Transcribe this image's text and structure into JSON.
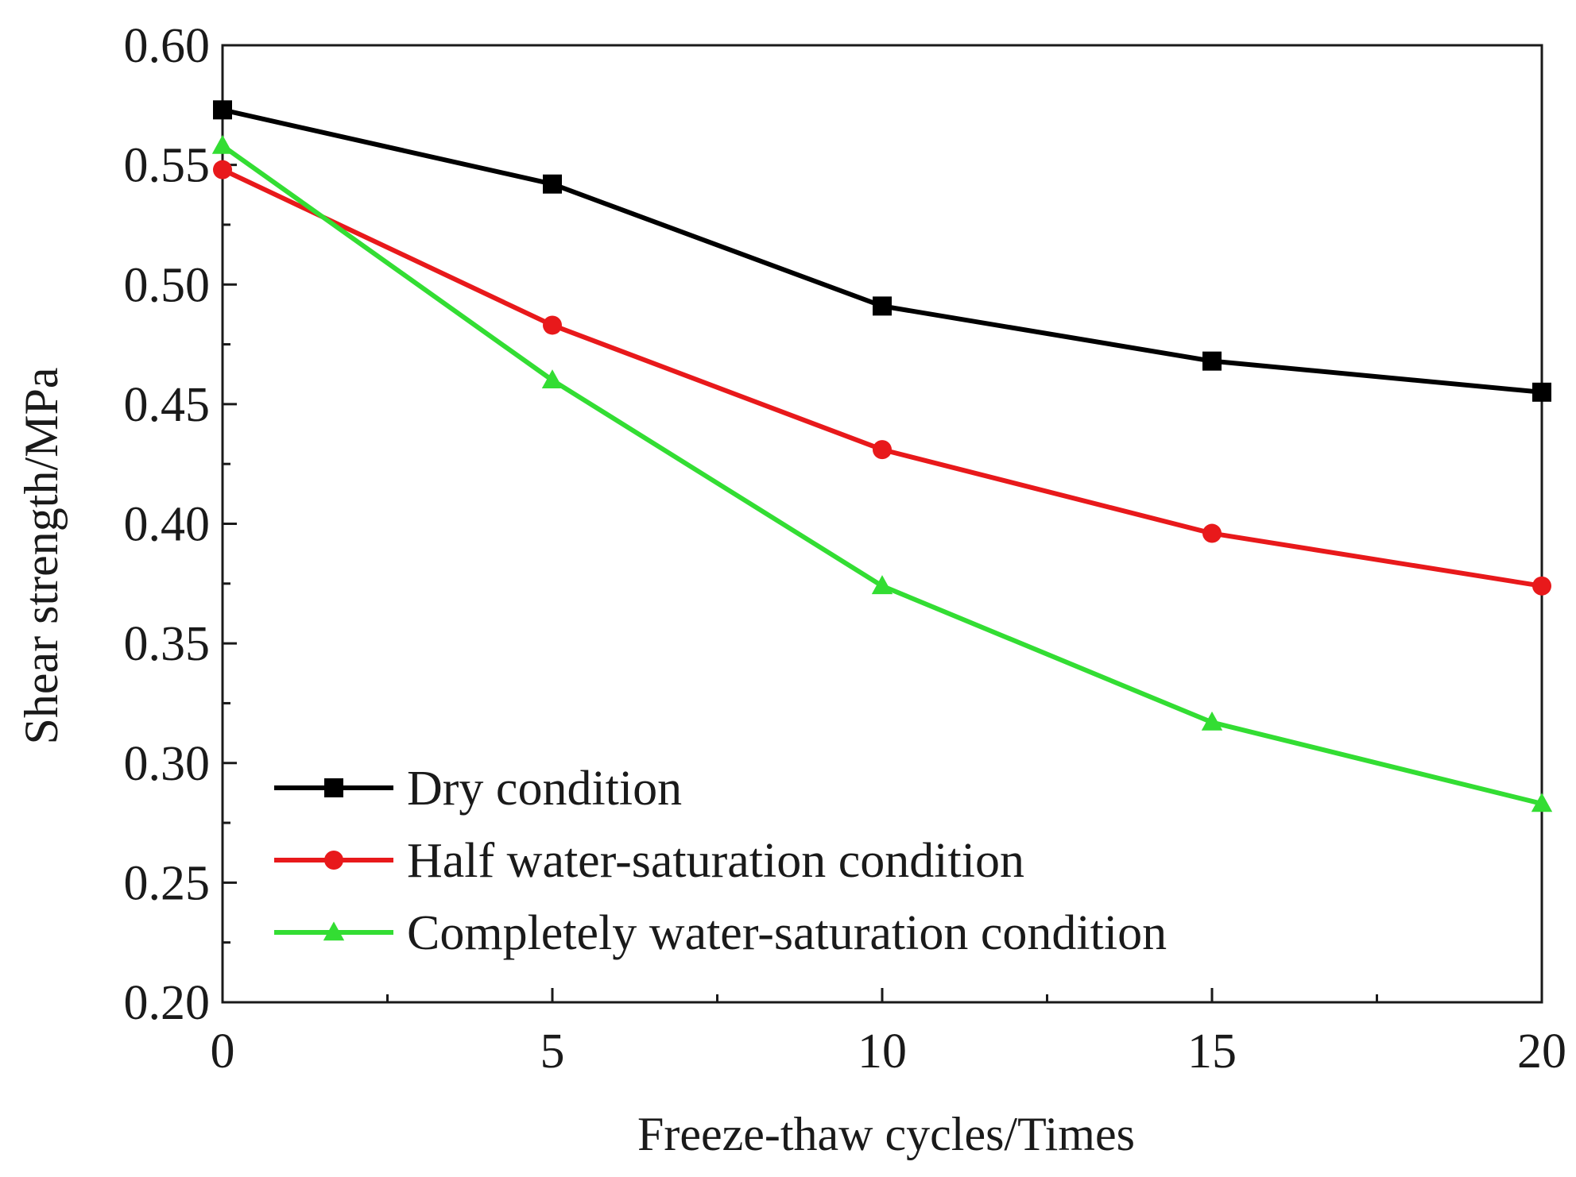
{
  "chart_data": {
    "type": "line",
    "title": "",
    "xlabel": "Freeze-thaw cycles/Times",
    "ylabel": "Shear strength/MPa",
    "x": [
      0,
      5,
      10,
      15,
      20
    ],
    "xlim": [
      0,
      20
    ],
    "ylim": [
      0.2,
      0.6
    ],
    "x_ticks": [
      "0",
      "5",
      "10",
      "15",
      "20"
    ],
    "y_ticks": [
      "0.20",
      "0.25",
      "0.30",
      "0.35",
      "0.40",
      "0.45",
      "0.50",
      "0.55",
      "0.60"
    ],
    "grid": false,
    "legend_position": "bottom-left",
    "series": [
      {
        "name": "Dry condition",
        "marker": "square",
        "color": "#000000",
        "values": [
          0.573,
          0.542,
          0.491,
          0.468,
          0.455
        ]
      },
      {
        "name": "Half water-saturation condition",
        "marker": "circle",
        "color": "#e8191b",
        "values": [
          0.548,
          0.483,
          0.431,
          0.396,
          0.374
        ]
      },
      {
        "name": "Completely water-saturation condition",
        "marker": "triangle",
        "color": "#33dd33",
        "values": [
          0.558,
          0.46,
          0.374,
          0.317,
          0.283
        ]
      }
    ]
  }
}
